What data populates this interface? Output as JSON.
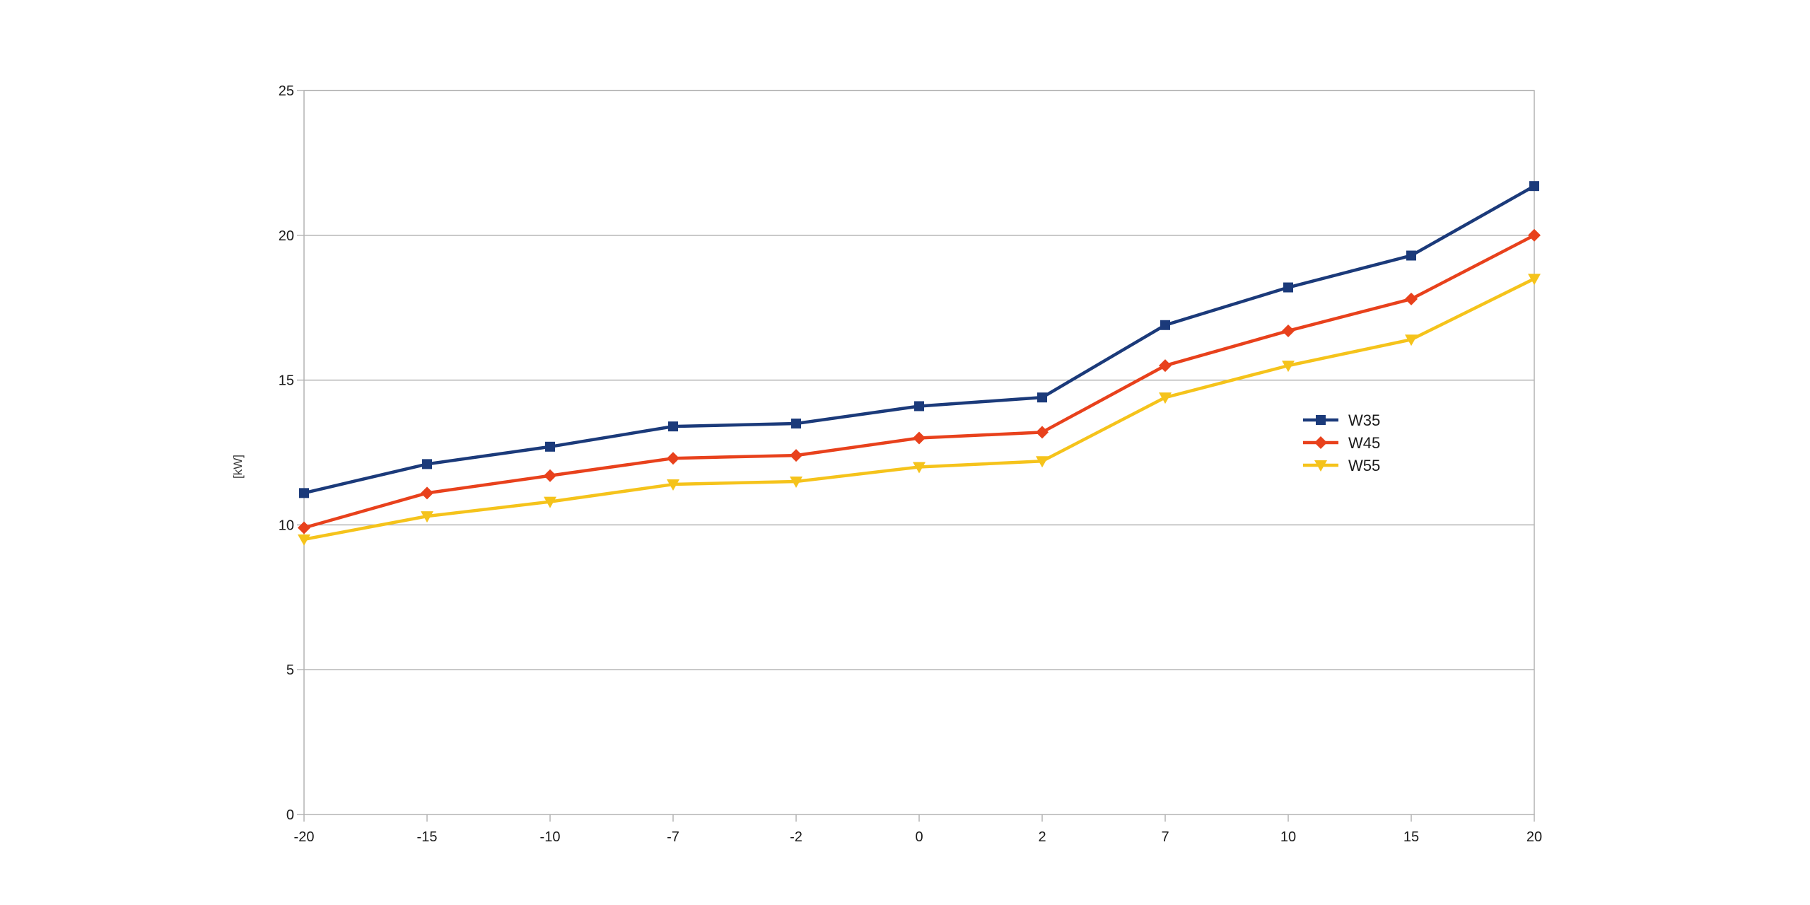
{
  "chart_data": {
    "type": "line",
    "title": "",
    "xlabel": "",
    "ylabel": "[kW]",
    "categories": [
      "-20",
      "-15",
      "-10",
      "-7",
      "-2",
      "0",
      "2",
      "7",
      "10",
      "15",
      "20"
    ],
    "ylim": [
      0,
      25
    ],
    "yticks": [
      "0",
      "5",
      "10",
      "15",
      "20",
      "25"
    ],
    "grid": true,
    "legend_position": "right",
    "series": [
      {
        "name": "W35",
        "color": "#1b3a7a",
        "marker": "square",
        "values": [
          11.1,
          12.1,
          12.7,
          13.4,
          13.5,
          14.1,
          14.4,
          16.9,
          18.2,
          19.3,
          21.7
        ]
      },
      {
        "name": "W45",
        "color": "#e8411c",
        "marker": "diamond",
        "values": [
          9.9,
          11.1,
          11.7,
          12.3,
          12.4,
          13.0,
          13.2,
          15.5,
          16.7,
          17.8,
          20.0
        ]
      },
      {
        "name": "W55",
        "color": "#f5c31b",
        "marker": "triangle-down",
        "values": [
          9.5,
          10.3,
          10.8,
          11.4,
          11.5,
          12.0,
          12.2,
          14.4,
          15.5,
          16.4,
          18.5
        ]
      }
    ]
  }
}
